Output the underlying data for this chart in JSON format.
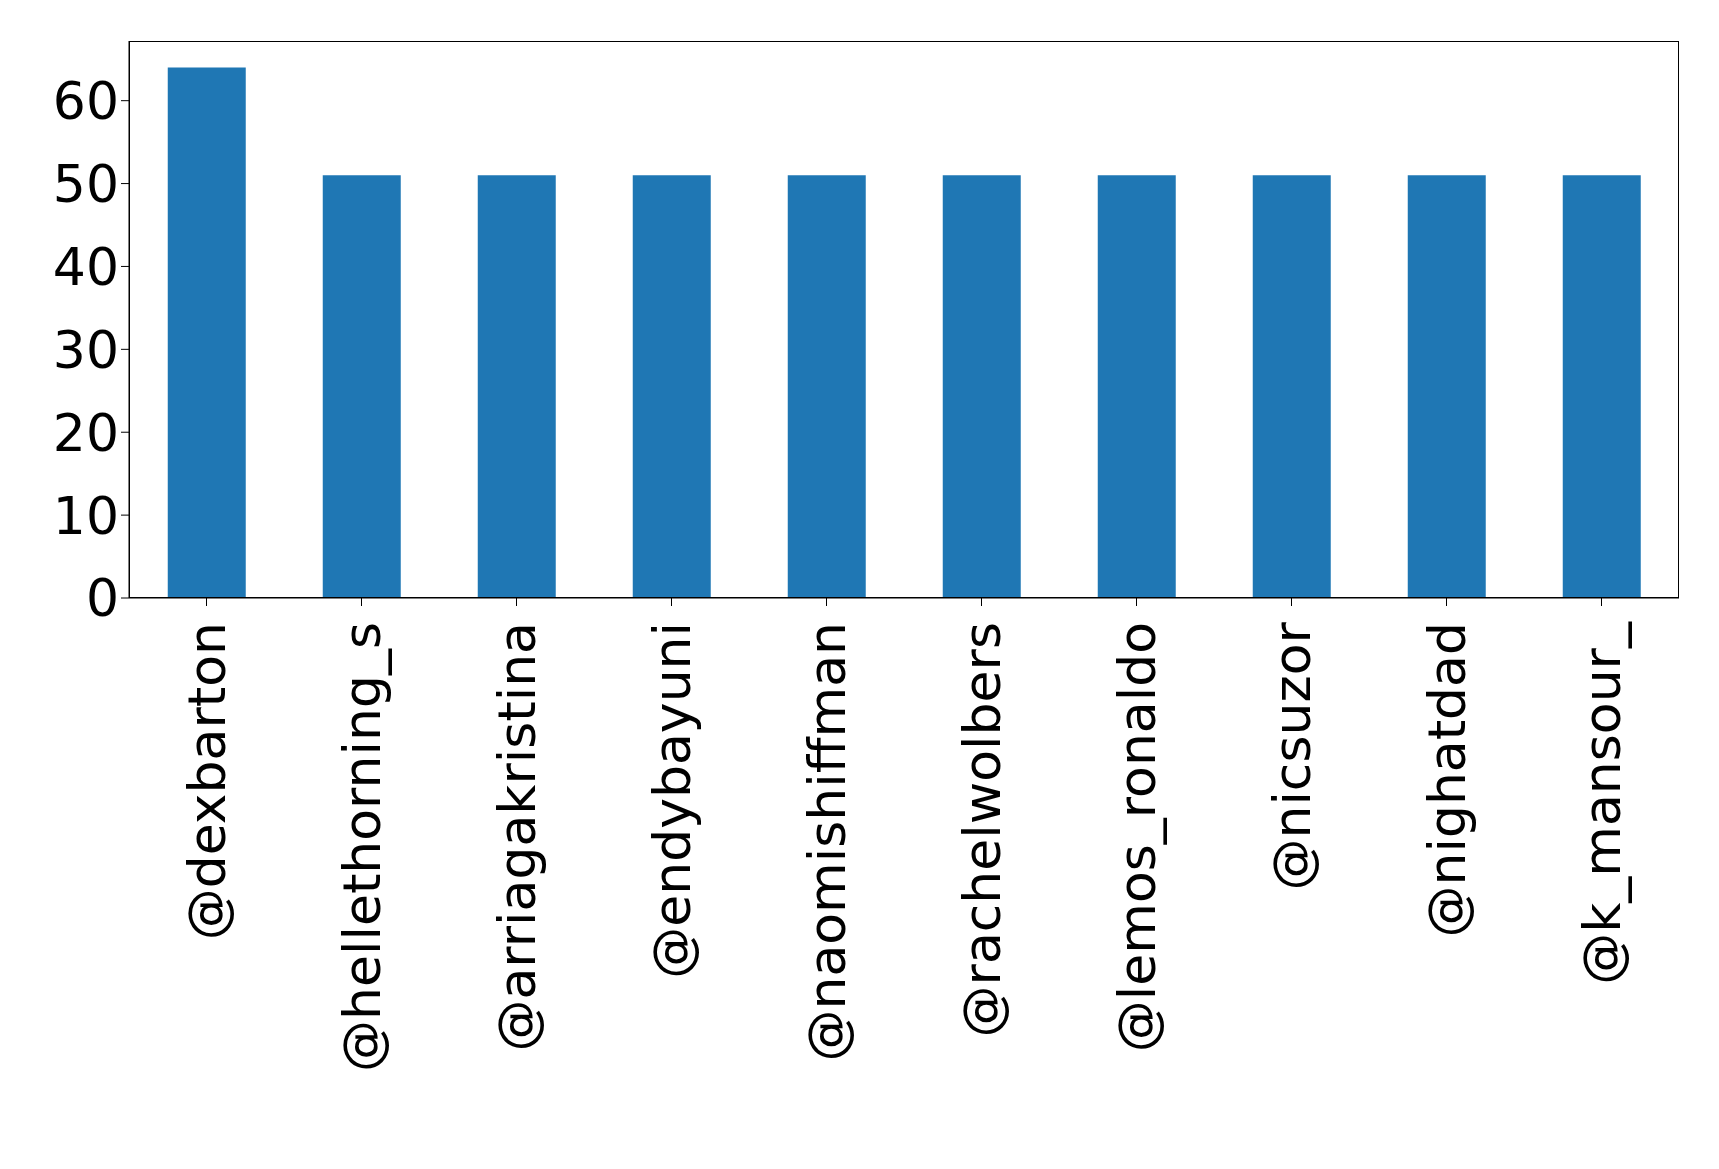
{
  "chart_data": {
    "type": "bar",
    "categories": [
      "@dexbarton",
      "@hellethorning_s",
      "@arriagakristina",
      "@endybayuni",
      "@naomishiffman",
      "@rachelwolbers",
      "@lemos_ronaldo",
      "@nicsuzor",
      "@nighatdad",
      "@k_mansour_"
    ],
    "values": [
      64,
      51,
      51,
      51,
      51,
      51,
      51,
      51,
      51,
      51
    ],
    "color": "#1f77b4",
    "ylim": [
      0,
      67.2
    ],
    "yticks": [
      0,
      10,
      20,
      30,
      40,
      50,
      60
    ],
    "grid": false,
    "legend": false
  }
}
